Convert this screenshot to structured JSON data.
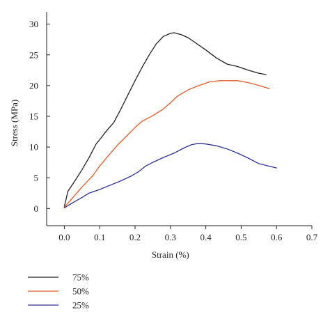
{
  "chart_data": {
    "type": "line",
    "title": "",
    "xlabel": "Strain (%)",
    "ylabel": "Stress (MPa)",
    "xlim": [
      -0.05,
      0.7
    ],
    "ylim": [
      -2.8,
      32
    ],
    "xticks": [
      0,
      0.1,
      0.2,
      0.3,
      0.4,
      0.5,
      0.6,
      0.7
    ],
    "xtick_labels": [
      "0.0",
      "0.1",
      "0.2",
      "0.3",
      "0.4",
      "0.5",
      "0.6",
      "0.7"
    ],
    "yticks": [
      0,
      5,
      10,
      15,
      20,
      25,
      30
    ],
    "ytick_labels": [
      "0",
      "5",
      "10",
      "15",
      "20",
      "25",
      "30"
    ],
    "grid": false,
    "legend_position": "below",
    "series": [
      {
        "name": "75%",
        "color": "#231f20",
        "x": [
          0.0,
          0.01,
          0.03,
          0.05,
          0.07,
          0.09,
          0.1,
          0.12,
          0.14,
          0.16,
          0.18,
          0.2,
          0.22,
          0.24,
          0.26,
          0.28,
          0.3,
          0.31,
          0.33,
          0.35,
          0.37,
          0.4,
          0.43,
          0.46,
          0.49,
          0.52,
          0.55,
          0.57
        ],
        "y": [
          0.3,
          2.8,
          4.5,
          6.3,
          8.3,
          10.5,
          11.2,
          12.7,
          14.0,
          16.2,
          18.5,
          20.8,
          23.0,
          25.0,
          26.8,
          28.0,
          28.5,
          28.6,
          28.3,
          27.8,
          27.0,
          25.8,
          24.5,
          23.5,
          23.1,
          22.5,
          22.0,
          21.8
        ]
      },
      {
        "name": "50%",
        "color": "#e05a28",
        "x": [
          0.0,
          0.02,
          0.05,
          0.08,
          0.1,
          0.12,
          0.15,
          0.18,
          0.2,
          0.22,
          0.25,
          0.28,
          0.3,
          0.32,
          0.35,
          0.38,
          0.41,
          0.44,
          0.47,
          0.49,
          0.51,
          0.54,
          0.58
        ],
        "y": [
          0.2,
          1.5,
          3.5,
          5.3,
          6.9,
          8.3,
          10.3,
          12.0,
          13.2,
          14.2,
          15.1,
          16.2,
          17.2,
          18.3,
          19.3,
          20.0,
          20.6,
          20.8,
          20.8,
          20.8,
          20.6,
          20.2,
          19.5
        ]
      },
      {
        "name": "25%",
        "color": "#2e3192",
        "x": [
          0.0,
          0.02,
          0.05,
          0.07,
          0.1,
          0.13,
          0.16,
          0.19,
          0.21,
          0.23,
          0.25,
          0.28,
          0.31,
          0.34,
          0.36,
          0.38,
          0.4,
          0.43,
          0.46,
          0.49,
          0.52,
          0.55,
          0.6
        ],
        "y": [
          0.1,
          0.8,
          1.8,
          2.5,
          3.1,
          3.8,
          4.5,
          5.3,
          6.0,
          6.9,
          7.5,
          8.3,
          9.0,
          9.9,
          10.4,
          10.6,
          10.5,
          10.2,
          9.7,
          9.0,
          8.2,
          7.3,
          6.6
        ]
      }
    ]
  }
}
